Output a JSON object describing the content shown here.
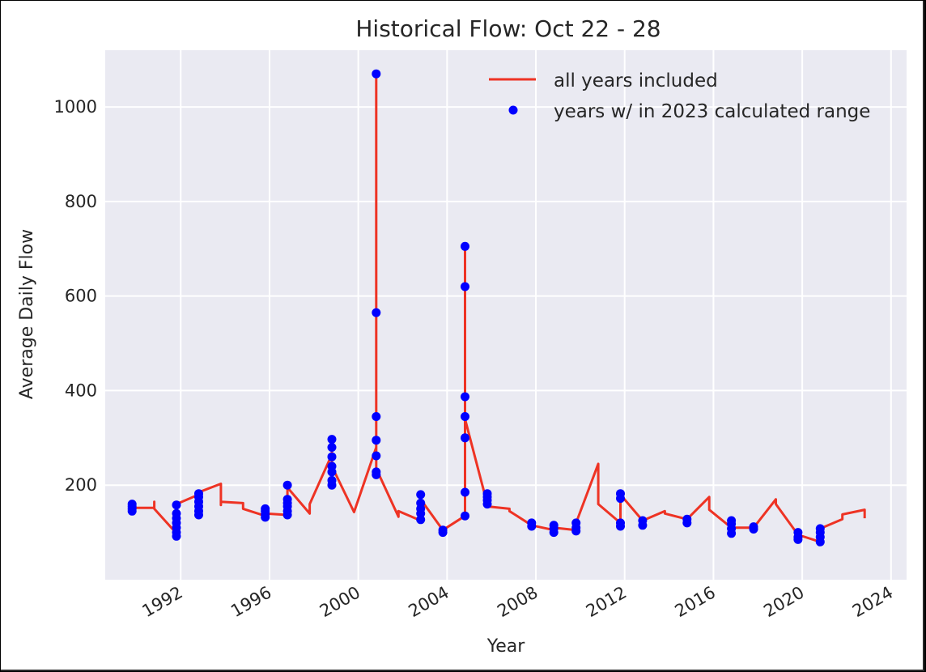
{
  "colors": {
    "plot_background": "#eaeaf2",
    "grid": "#ffffff",
    "line_series": "#ee3324",
    "point_series": "#0000ff",
    "text": "#262626"
  },
  "chart_data": {
    "type": "line",
    "title": "Historical Flow: Oct 22 - 28",
    "xlabel": "Year",
    "ylabel": "Average Daily Flow",
    "xlim": [
      1988.6,
      2024.7
    ],
    "ylim": [
      0,
      1120
    ],
    "x_ticks": [
      "1992",
      "1996",
      "2000",
      "2004",
      "2008",
      "2012",
      "2016",
      "2020",
      "2024"
    ],
    "y_ticks": [
      "200",
      "400",
      "600",
      "800",
      "1000"
    ],
    "grid": true,
    "legend": {
      "position": "upper-right",
      "entries": [
        "all years included",
        "years w/ in 2023 calculated range"
      ]
    },
    "series": [
      {
        "name": "all years included",
        "style": "line",
        "color": "#ee3324",
        "points": [
          [
            1989.81,
            155
          ],
          [
            1989.81,
            160
          ],
          [
            1989.81,
            148
          ],
          [
            1989.81,
            152
          ],
          [
            1990.81,
            152
          ],
          [
            1990.81,
            165
          ],
          [
            1990.81,
            150
          ],
          [
            1991.81,
            98
          ],
          [
            1991.81,
            115
          ],
          [
            1991.81,
            160
          ],
          [
            1992.81,
            180
          ],
          [
            1992.81,
            185
          ],
          [
            1993.81,
            203
          ],
          [
            1993.81,
            158
          ],
          [
            1993.81,
            165
          ],
          [
            1994.81,
            162
          ],
          [
            1994.81,
            150
          ],
          [
            1995.81,
            135
          ],
          [
            1995.81,
            140
          ],
          [
            1996.81,
            137
          ],
          [
            1996.81,
            195
          ],
          [
            1997.81,
            140
          ],
          [
            1997.81,
            160
          ],
          [
            1998.81,
            265
          ],
          [
            1998.81,
            280
          ],
          [
            1998.81,
            240
          ],
          [
            1999.81,
            143
          ],
          [
            2000.81,
            280
          ],
          [
            2000.81,
            1070
          ],
          [
            2000.81,
            235
          ],
          [
            2001.81,
            133
          ],
          [
            2001.81,
            145
          ],
          [
            2002.81,
            125
          ],
          [
            2002.81,
            170
          ],
          [
            2003.81,
            105
          ],
          [
            2004.81,
            135
          ],
          [
            2004.81,
            700
          ],
          [
            2004.81,
            340
          ],
          [
            2005.81,
            160
          ],
          [
            2005.81,
            155
          ],
          [
            2006.81,
            150
          ],
          [
            2006.81,
            145
          ],
          [
            2007.81,
            115
          ],
          [
            2008.81,
            105
          ],
          [
            2008.81,
            110
          ],
          [
            2009.81,
            105
          ],
          [
            2009.81,
            120
          ],
          [
            2010.81,
            245
          ],
          [
            2010.81,
            160
          ],
          [
            2011.81,
            120
          ],
          [
            2011.81,
            180
          ],
          [
            2012.81,
            125
          ],
          [
            2013.81,
            145
          ],
          [
            2013.81,
            140
          ],
          [
            2014.81,
            128
          ],
          [
            2015.81,
            175
          ],
          [
            2015.81,
            148
          ],
          [
            2016.81,
            110
          ],
          [
            2017.81,
            110
          ],
          [
            2018.81,
            170
          ],
          [
            2018.81,
            160
          ],
          [
            2019.81,
            95
          ],
          [
            2020.81,
            80
          ],
          [
            2020.81,
            108
          ],
          [
            2021.81,
            128
          ],
          [
            2021.81,
            138
          ],
          [
            2022.81,
            148
          ],
          [
            2022.81,
            130
          ]
        ]
      },
      {
        "name": "years w/ in 2023 calculated range",
        "style": "markers",
        "color": "#0000ff",
        "points": [
          [
            1989.81,
            160
          ],
          [
            1989.81,
            155
          ],
          [
            1989.81,
            150
          ],
          [
            1989.81,
            145
          ],
          [
            1991.81,
            158
          ],
          [
            1991.81,
            140
          ],
          [
            1991.81,
            130
          ],
          [
            1991.81,
            120
          ],
          [
            1991.81,
            110
          ],
          [
            1991.81,
            100
          ],
          [
            1991.81,
            92
          ],
          [
            1992.81,
            182
          ],
          [
            1992.81,
            175
          ],
          [
            1992.81,
            165
          ],
          [
            1992.81,
            155
          ],
          [
            1992.81,
            145
          ],
          [
            1992.81,
            137
          ],
          [
            1995.81,
            150
          ],
          [
            1995.81,
            145
          ],
          [
            1995.81,
            138
          ],
          [
            1995.81,
            132
          ],
          [
            1996.81,
            200
          ],
          [
            1996.81,
            170
          ],
          [
            1996.81,
            162
          ],
          [
            1996.81,
            155
          ],
          [
            1996.81,
            145
          ],
          [
            1996.81,
            137
          ],
          [
            1998.81,
            297
          ],
          [
            1998.81,
            280
          ],
          [
            1998.81,
            260
          ],
          [
            1998.81,
            240
          ],
          [
            1998.81,
            228
          ],
          [
            1998.81,
            210
          ],
          [
            1998.81,
            200
          ],
          [
            2000.81,
            1070
          ],
          [
            2000.81,
            565
          ],
          [
            2000.81,
            345
          ],
          [
            2000.81,
            295
          ],
          [
            2000.81,
            262
          ],
          [
            2000.81,
            228
          ],
          [
            2000.81,
            222
          ],
          [
            2002.81,
            180
          ],
          [
            2002.81,
            162
          ],
          [
            2002.81,
            150
          ],
          [
            2002.81,
            140
          ],
          [
            2002.81,
            127
          ],
          [
            2003.81,
            105
          ],
          [
            2003.81,
            100
          ],
          [
            2004.81,
            705
          ],
          [
            2004.81,
            620
          ],
          [
            2004.81,
            387
          ],
          [
            2004.81,
            345
          ],
          [
            2004.81,
            300
          ],
          [
            2004.81,
            185
          ],
          [
            2004.81,
            135
          ],
          [
            2005.81,
            182
          ],
          [
            2005.81,
            175
          ],
          [
            2005.81,
            168
          ],
          [
            2005.81,
            160
          ],
          [
            2007.81,
            120
          ],
          [
            2007.81,
            113
          ],
          [
            2008.81,
            115
          ],
          [
            2008.81,
            108
          ],
          [
            2008.81,
            100
          ],
          [
            2009.81,
            120
          ],
          [
            2009.81,
            110
          ],
          [
            2009.81,
            103
          ],
          [
            2011.81,
            182
          ],
          [
            2011.81,
            172
          ],
          [
            2011.81,
            120
          ],
          [
            2011.81,
            113
          ],
          [
            2012.81,
            125
          ],
          [
            2012.81,
            115
          ],
          [
            2014.81,
            128
          ],
          [
            2014.81,
            120
          ],
          [
            2016.81,
            125
          ],
          [
            2016.81,
            118
          ],
          [
            2016.81,
            108
          ],
          [
            2016.81,
            98
          ],
          [
            2017.81,
            112
          ],
          [
            2017.81,
            107
          ],
          [
            2019.81,
            100
          ],
          [
            2019.81,
            90
          ],
          [
            2019.81,
            85
          ],
          [
            2020.81,
            108
          ],
          [
            2020.81,
            100
          ],
          [
            2020.81,
            90
          ],
          [
            2020.81,
            80
          ]
        ]
      }
    ]
  }
}
